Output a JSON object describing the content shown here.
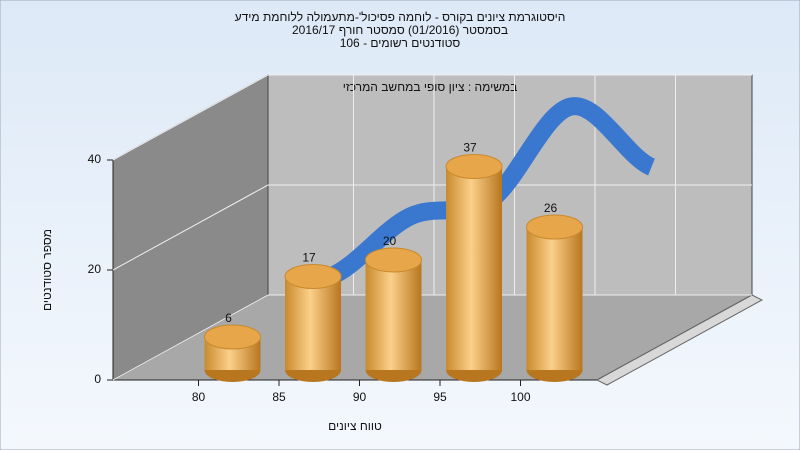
{
  "chart_data": {
    "type": "bar",
    "title": [
      "היסטוגרמת ציונים בקורס - לוחמה פסיכול'-מתעמולה ללוחמת מידע",
      "בסמסטר   (01/2016)  סמסטר חורף  2016/17",
      "סטודנטים רשומים - 106"
    ],
    "subtitle": "במשימה : ציון סופי במחשב המרכזי",
    "x_label": "טווח ציונים",
    "y_label": "מספר סטודנטים",
    "categories": [
      "80",
      "85",
      "90",
      "95",
      "100"
    ],
    "values": [
      6,
      17,
      20,
      37,
      26
    ],
    "color": "#e8a64a",
    "line_color": "#3a78d0",
    "ylim": [
      0,
      40
    ],
    "yticks": [
      0,
      20,
      40
    ],
    "grid": true
  }
}
